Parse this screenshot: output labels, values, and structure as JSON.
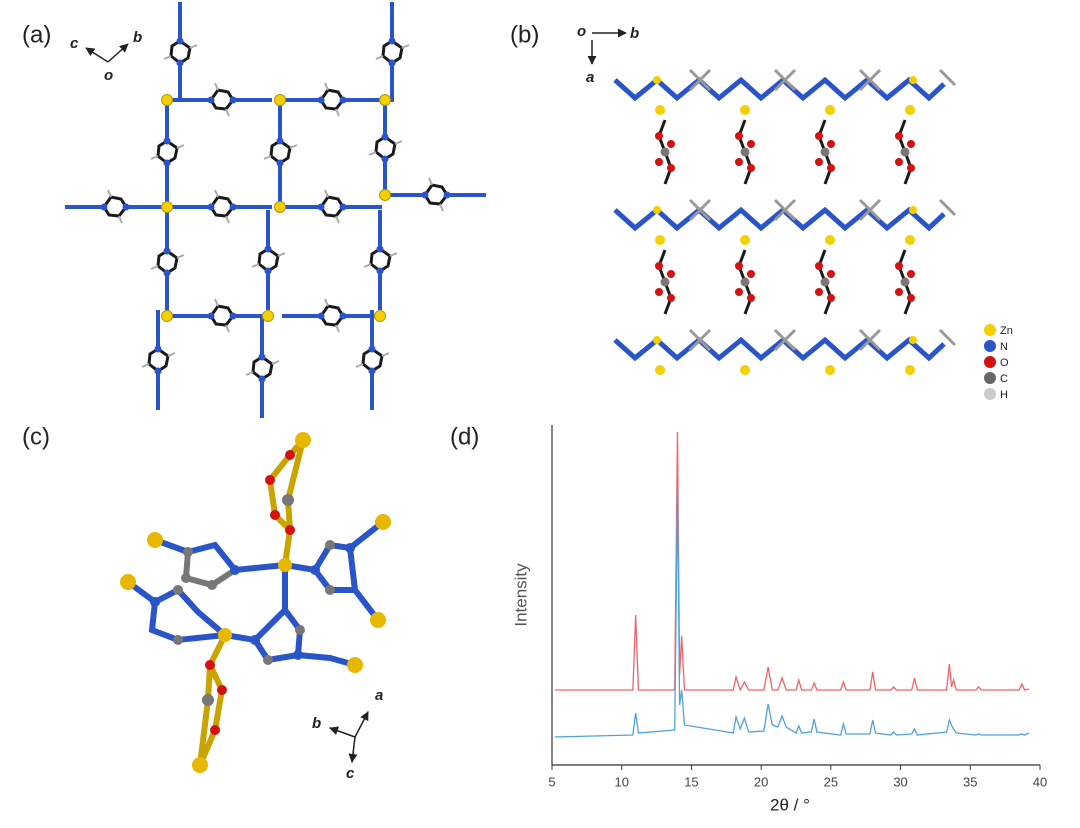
{
  "panels": {
    "a": {
      "label": "(a)",
      "axis_labels": [
        "c",
        "b",
        "o"
      ]
    },
    "b": {
      "label": "(b)",
      "axis_labels": [
        "o",
        "b",
        "a"
      ],
      "legend": [
        "Zn",
        "N",
        "O",
        "C",
        "H"
      ]
    },
    "c": {
      "label": "(c)",
      "axis_labels": [
        "a",
        "b",
        "c"
      ]
    },
    "d": {
      "label": "(d)"
    }
  },
  "chart_data": {
    "type": "line",
    "xlabel": "2θ / °",
    "ylabel": "Intensity",
    "xlim": [
      5,
      40
    ],
    "xticks": [
      5,
      10,
      15,
      20,
      25,
      30,
      35,
      40
    ],
    "ylim": [
      0,
      340
    ],
    "x": [
      5.2,
      10.8,
      11.0,
      11.2,
      13.8,
      14.0,
      14.15,
      14.3,
      14.5,
      18.0,
      18.2,
      18.5,
      18.8,
      19.1,
      20.2,
      20.5,
      20.8,
      21.2,
      21.5,
      21.8,
      22.5,
      22.7,
      22.9,
      23.6,
      23.8,
      24.0,
      25.7,
      25.9,
      26.1,
      27.8,
      28.0,
      28.2,
      29.3,
      29.5,
      29.7,
      30.8,
      31.0,
      31.2,
      33.3,
      33.5,
      33.65,
      33.8,
      34.0,
      35.4,
      35.6,
      35.8,
      38.5,
      38.7,
      38.9,
      39.2
    ],
    "series": [
      {
        "color": "#f0626a",
        "values": [
          75,
          75,
          150,
          75,
          75,
          333,
          90,
          129,
          75,
          75,
          88,
          75,
          83,
          75,
          75,
          98,
          75,
          75,
          87,
          75,
          75,
          85,
          75,
          75,
          82,
          75,
          75,
          83,
          75,
          75,
          93,
          75,
          75,
          78,
          75,
          75,
          87,
          75,
          75,
          101,
          78,
          85,
          75,
          75,
          78,
          75,
          75,
          81,
          75,
          76
        ]
      },
      {
        "color": "#4fa3d6",
        "values": [
          28,
          30,
          52,
          32,
          35,
          277,
          60,
          75,
          40,
          32,
          48,
          36,
          47,
          33,
          34,
          61,
          40,
          38,
          49,
          38,
          32,
          39,
          32,
          33,
          46,
          33,
          30,
          41,
          31,
          31,
          45,
          32,
          30,
          33,
          30,
          31,
          36,
          30,
          33,
          45,
          40,
          36,
          32,
          30,
          31,
          30,
          30,
          31,
          30,
          32
        ]
      }
    ]
  }
}
